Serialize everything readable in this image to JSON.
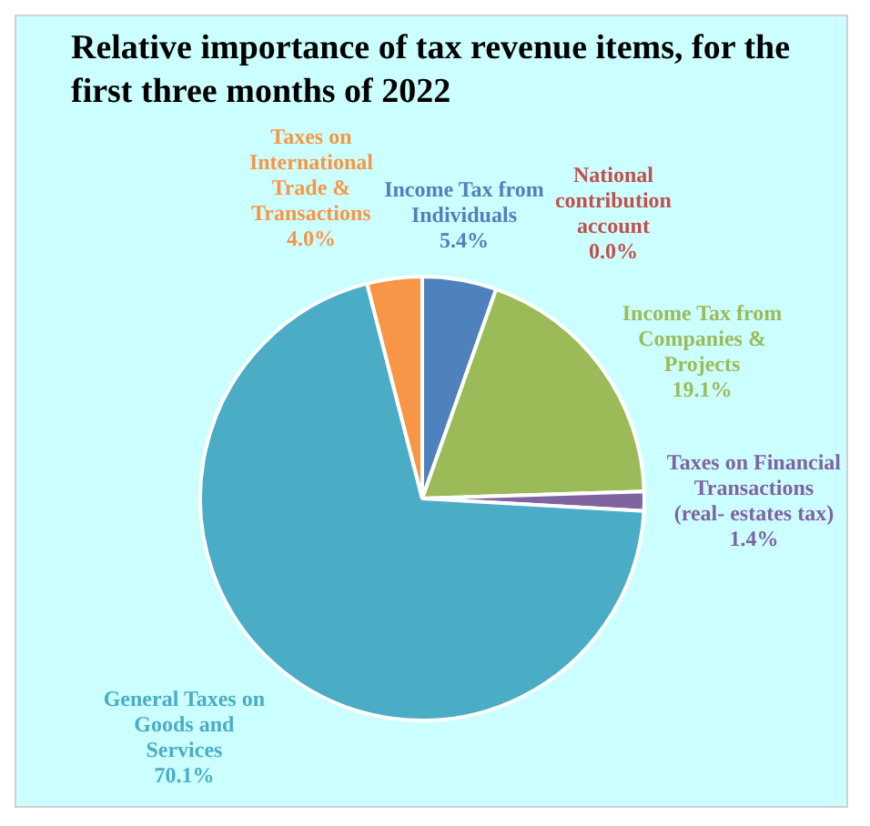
{
  "chart_data": {
    "type": "pie",
    "title": "Relative importance of tax revenue items, for the first three months of 2022",
    "categories": [
      "Income Tax from Individuals",
      "National contribution account",
      "Income Tax from Companies & Projects",
      "Taxes on Financial Transactions (real- estates tax)",
      "General Taxes on Goods and Services",
      "Taxes on International Trade & Transactions"
    ],
    "values": [
      5.4,
      0.0,
      19.1,
      1.4,
      70.1,
      4.0
    ],
    "value_labels": [
      "5.4%",
      "0.0%",
      "19.1%",
      "1.4%",
      "70.1%",
      "4.0%"
    ],
    "colors": [
      "#4f81bd",
      "#c0504d",
      "#9bbb59",
      "#8064a2",
      "#4bacc6",
      "#f79646"
    ],
    "legend": false
  }
}
